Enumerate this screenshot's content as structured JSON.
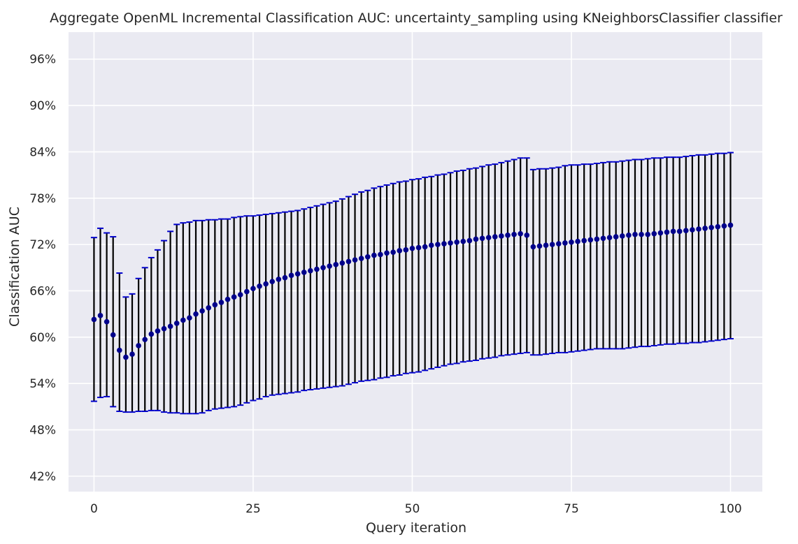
{
  "chart_data": {
    "type": "scatter",
    "title": "Aggregate OpenML Incremental Classification AUC: uncertainty_sampling using KNeighborsClassifier classifier",
    "xlabel": "Query iteration",
    "ylabel": "Classification AUC",
    "xlim": [
      -4,
      105
    ],
    "ylim": [
      0.4,
      0.995
    ],
    "x_ticks": [
      0,
      25,
      50,
      75,
      100
    ],
    "y_ticks": [
      0.42,
      0.48,
      0.54,
      0.6,
      0.66,
      0.72,
      0.78,
      0.84,
      0.9,
      0.96
    ],
    "y_tick_labels": [
      "42%",
      "48%",
      "54%",
      "60%",
      "66%",
      "72%",
      "78%",
      "84%",
      "90%",
      "96%"
    ],
    "grid": true,
    "legend": "none",
    "colors": {
      "background": "#eaeaf2",
      "grid": "#ffffff",
      "point": "#00008b",
      "cap": "#0000cc",
      "errorbar": "#000000"
    },
    "series": [
      {
        "x": [
          0,
          1,
          2,
          3,
          4,
          5,
          6,
          7,
          8,
          9,
          10,
          11,
          12,
          13,
          14,
          15,
          16,
          17,
          18,
          19,
          20,
          21,
          22,
          23,
          24,
          25,
          26,
          27,
          28,
          29,
          30,
          31,
          32,
          33,
          34,
          35,
          36,
          37,
          38,
          39,
          40,
          41,
          42,
          43,
          44,
          45,
          46,
          47,
          48,
          49,
          50,
          51,
          52,
          53,
          54,
          55,
          56,
          57,
          58,
          59,
          60,
          61,
          62,
          63,
          64,
          65,
          66,
          67,
          68,
          69,
          70,
          71,
          72,
          73,
          74,
          75,
          76,
          77,
          78,
          79,
          80,
          81,
          82,
          83,
          84,
          85,
          86,
          87,
          88,
          89,
          90,
          91,
          92,
          93,
          94,
          95,
          96,
          97,
          98,
          99,
          100
        ],
        "y": [
          0.623,
          0.628,
          0.62,
          0.603,
          0.583,
          0.574,
          0.578,
          0.589,
          0.597,
          0.604,
          0.608,
          0.611,
          0.614,
          0.618,
          0.622,
          0.625,
          0.63,
          0.634,
          0.638,
          0.642,
          0.645,
          0.649,
          0.652,
          0.655,
          0.659,
          0.663,
          0.666,
          0.669,
          0.672,
          0.675,
          0.677,
          0.68,
          0.682,
          0.684,
          0.686,
          0.688,
          0.69,
          0.692,
          0.694,
          0.696,
          0.698,
          0.7,
          0.702,
          0.704,
          0.706,
          0.707,
          0.709,
          0.71,
          0.712,
          0.713,
          0.715,
          0.716,
          0.717,
          0.719,
          0.72,
          0.721,
          0.722,
          0.723,
          0.724,
          0.725,
          0.727,
          0.728,
          0.729,
          0.73,
          0.731,
          0.732,
          0.733,
          0.734,
          0.732,
          0.717,
          0.718,
          0.719,
          0.72,
          0.721,
          0.722,
          0.723,
          0.724,
          0.725,
          0.726,
          0.727,
          0.728,
          0.729,
          0.73,
          0.731,
          0.732,
          0.733,
          0.733,
          0.733,
          0.734,
          0.735,
          0.736,
          0.737,
          0.737,
          0.738,
          0.739,
          0.74,
          0.741,
          0.742,
          0.743,
          0.744,
          0.745
        ],
        "lower": [
          0.517,
          0.522,
          0.523,
          0.51,
          0.504,
          0.503,
          0.503,
          0.504,
          0.504,
          0.505,
          0.505,
          0.503,
          0.502,
          0.502,
          0.501,
          0.501,
          0.501,
          0.502,
          0.505,
          0.507,
          0.508,
          0.509,
          0.51,
          0.512,
          0.515,
          0.518,
          0.52,
          0.523,
          0.525,
          0.526,
          0.527,
          0.528,
          0.529,
          0.531,
          0.532,
          0.533,
          0.534,
          0.535,
          0.536,
          0.537,
          0.539,
          0.541,
          0.543,
          0.544,
          0.545,
          0.547,
          0.548,
          0.55,
          0.551,
          0.553,
          0.554,
          0.555,
          0.557,
          0.559,
          0.561,
          0.563,
          0.565,
          0.566,
          0.568,
          0.569,
          0.57,
          0.572,
          0.573,
          0.574,
          0.576,
          0.577,
          0.578,
          0.579,
          0.58,
          0.577,
          0.577,
          0.578,
          0.579,
          0.58,
          0.58,
          0.581,
          0.582,
          0.583,
          0.584,
          0.585,
          0.585,
          0.585,
          0.585,
          0.585,
          0.586,
          0.587,
          0.588,
          0.588,
          0.589,
          0.59,
          0.591,
          0.591,
          0.592,
          0.592,
          0.593,
          0.593,
          0.594,
          0.595,
          0.596,
          0.597,
          0.598
        ],
        "upper": [
          0.729,
          0.741,
          0.735,
          0.73,
          0.683,
          0.652,
          0.656,
          0.676,
          0.69,
          0.703,
          0.713,
          0.725,
          0.737,
          0.746,
          0.748,
          0.749,
          0.751,
          0.751,
          0.752,
          0.752,
          0.753,
          0.753,
          0.755,
          0.756,
          0.757,
          0.757,
          0.758,
          0.759,
          0.76,
          0.761,
          0.762,
          0.763,
          0.764,
          0.766,
          0.768,
          0.77,
          0.772,
          0.774,
          0.776,
          0.779,
          0.782,
          0.785,
          0.788,
          0.79,
          0.793,
          0.795,
          0.797,
          0.799,
          0.801,
          0.802,
          0.804,
          0.805,
          0.807,
          0.808,
          0.81,
          0.811,
          0.813,
          0.815,
          0.816,
          0.818,
          0.819,
          0.821,
          0.823,
          0.824,
          0.826,
          0.828,
          0.83,
          0.832,
          0.832,
          0.817,
          0.818,
          0.818,
          0.819,
          0.82,
          0.822,
          0.823,
          0.823,
          0.824,
          0.824,
          0.825,
          0.826,
          0.827,
          0.827,
          0.828,
          0.829,
          0.83,
          0.83,
          0.831,
          0.832,
          0.832,
          0.833,
          0.833,
          0.833,
          0.834,
          0.835,
          0.836,
          0.836,
          0.837,
          0.838,
          0.838,
          0.839
        ]
      }
    ]
  }
}
